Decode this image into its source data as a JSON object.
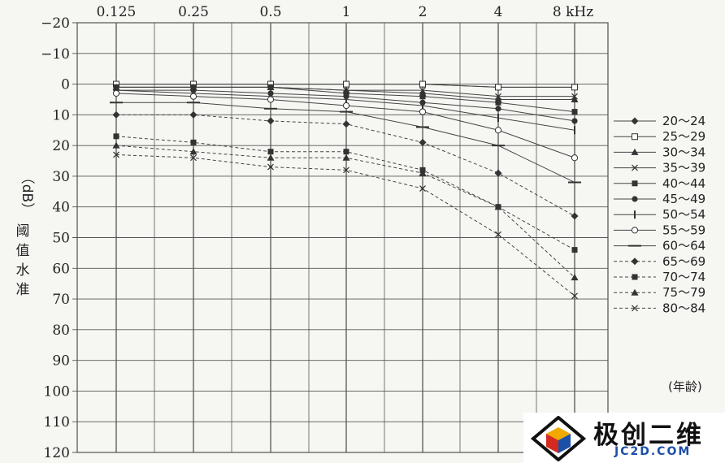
{
  "chart_data": {
    "type": "line",
    "x": [
      "0.125",
      "0.25",
      "0.5",
      "1",
      "2",
      "4",
      "8 kHz"
    ],
    "ylabel_unit": "（dB）",
    "ylabel_chars": [
      "阈",
      "值",
      "水",
      "准"
    ],
    "y_ticks": [
      "−20",
      "−10",
      "0",
      "10",
      "20",
      "30",
      "40",
      "50",
      "60",
      "70",
      "80",
      "90",
      "100",
      "110",
      "120"
    ],
    "ylim": [
      -20,
      120
    ],
    "y_inverted": true,
    "grid": true,
    "legend_position": "right",
    "legend_note": "(年龄)",
    "series": [
      {
        "name": "20～24",
        "marker": "diamond",
        "dash": false,
        "values": [
          0,
          0,
          0,
          0,
          0,
          1,
          1
        ]
      },
      {
        "name": "25～29",
        "marker": "square-open",
        "dash": false,
        "values": [
          0,
          0,
          0,
          0,
          0,
          1,
          1
        ]
      },
      {
        "name": "30～34",
        "marker": "triangle",
        "dash": false,
        "values": [
          1,
          1,
          1,
          2,
          3,
          5,
          5
        ]
      },
      {
        "name": "35～39",
        "marker": "x",
        "dash": false,
        "values": [
          1,
          1,
          1,
          2,
          2,
          4,
          4
        ]
      },
      {
        "name": "40～44",
        "marker": "square",
        "dash": false,
        "values": [
          1,
          1,
          1,
          3,
          4,
          6,
          9
        ]
      },
      {
        "name": "45～49",
        "marker": "circle",
        "dash": false,
        "values": [
          2,
          2,
          3,
          4,
          6,
          8,
          12
        ]
      },
      {
        "name": "50～54",
        "marker": "vbar",
        "dash": false,
        "values": [
          2,
          3,
          4,
          5,
          7,
          11,
          15
        ]
      },
      {
        "name": "55～59",
        "marker": "circle-open",
        "dash": false,
        "values": [
          3,
          4,
          5,
          7,
          9,
          15,
          24
        ]
      },
      {
        "name": "60～64",
        "marker": "hbar",
        "dash": false,
        "values": [
          6,
          6,
          8,
          9,
          14,
          20,
          32
        ]
      },
      {
        "name": "65～69",
        "marker": "diamond",
        "dash": true,
        "values": [
          10,
          10,
          12,
          13,
          19,
          29,
          43
        ]
      },
      {
        "name": "70～74",
        "marker": "square",
        "dash": true,
        "values": [
          17,
          19,
          22,
          22,
          28,
          40,
          54
        ]
      },
      {
        "name": "75～79",
        "marker": "triangle",
        "dash": true,
        "values": [
          20,
          22,
          24,
          24,
          29,
          40,
          63
        ]
      },
      {
        "name": "80～84",
        "marker": "x",
        "dash": true,
        "values": [
          23,
          24,
          27,
          28,
          34,
          49,
          69
        ]
      }
    ]
  },
  "watermark": {
    "cn": "极创二维",
    "en": "JC2D.COM"
  }
}
